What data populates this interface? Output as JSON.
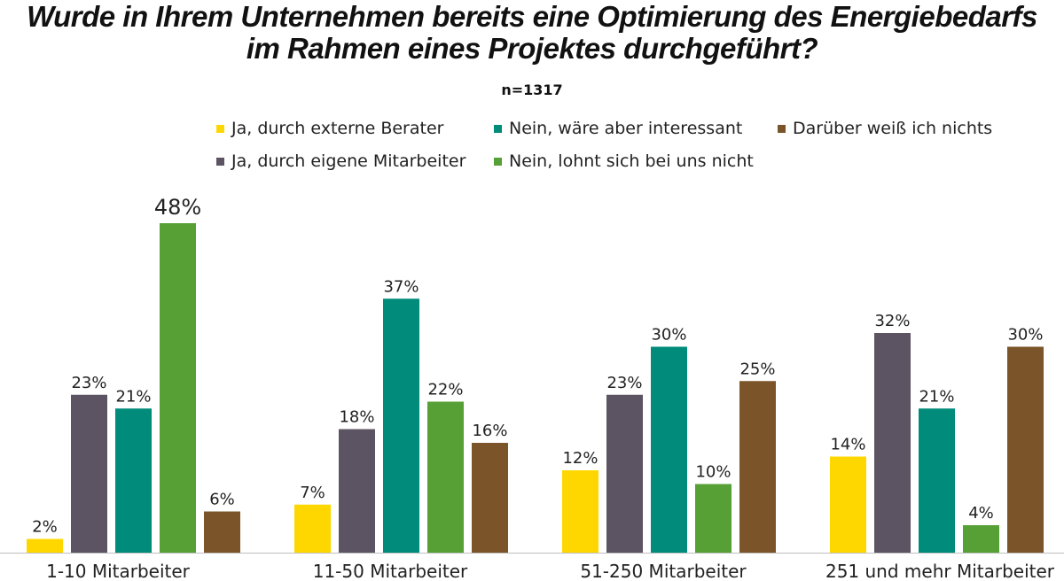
{
  "title_line1": "Wurde in Ihrem Unternehmen bereits eine Optimierung des Energiebedarfs",
  "title_line2": "im Rahmen eines Projektes durchgeführt?",
  "subtitle": "n=1317",
  "chart_data": {
    "type": "bar",
    "title": "Wurde in Ihrem Unternehmen bereits eine Optimierung des Energiebedarfs im Rahmen eines Projektes durchgeführt?",
    "subtitle": "n=1317",
    "categories": [
      "1-10 Mitarbeiter",
      "11-50 Mitarbeiter",
      "51-250 Mitarbeiter",
      "251 und mehr Mitarbeiter"
    ],
    "series": [
      {
        "name": "Ja, durch externe Berater",
        "color": "#FFD700",
        "values": [
          2,
          7,
          12,
          14
        ]
      },
      {
        "name": "Ja, durch eigene Mitarbeiter",
        "color": "#5C5462",
        "values": [
          23,
          18,
          23,
          32
        ]
      },
      {
        "name": "Nein, wäre aber interessant",
        "color": "#008B7A",
        "values": [
          21,
          37,
          30,
          21
        ]
      },
      {
        "name": "Nein, lohnt sich bei uns nicht",
        "color": "#56A036",
        "values": [
          48,
          22,
          10,
          4
        ]
      },
      {
        "name": "Darüber weiß ich nichts",
        "color": "#7B5429",
        "values": [
          6,
          16,
          25,
          30
        ]
      }
    ],
    "value_suffix": "%",
    "highlighted_label": {
      "category": 0,
      "series": 3
    },
    "ylim": [
      0,
      50
    ],
    "grid": false,
    "legend_position": "top"
  }
}
